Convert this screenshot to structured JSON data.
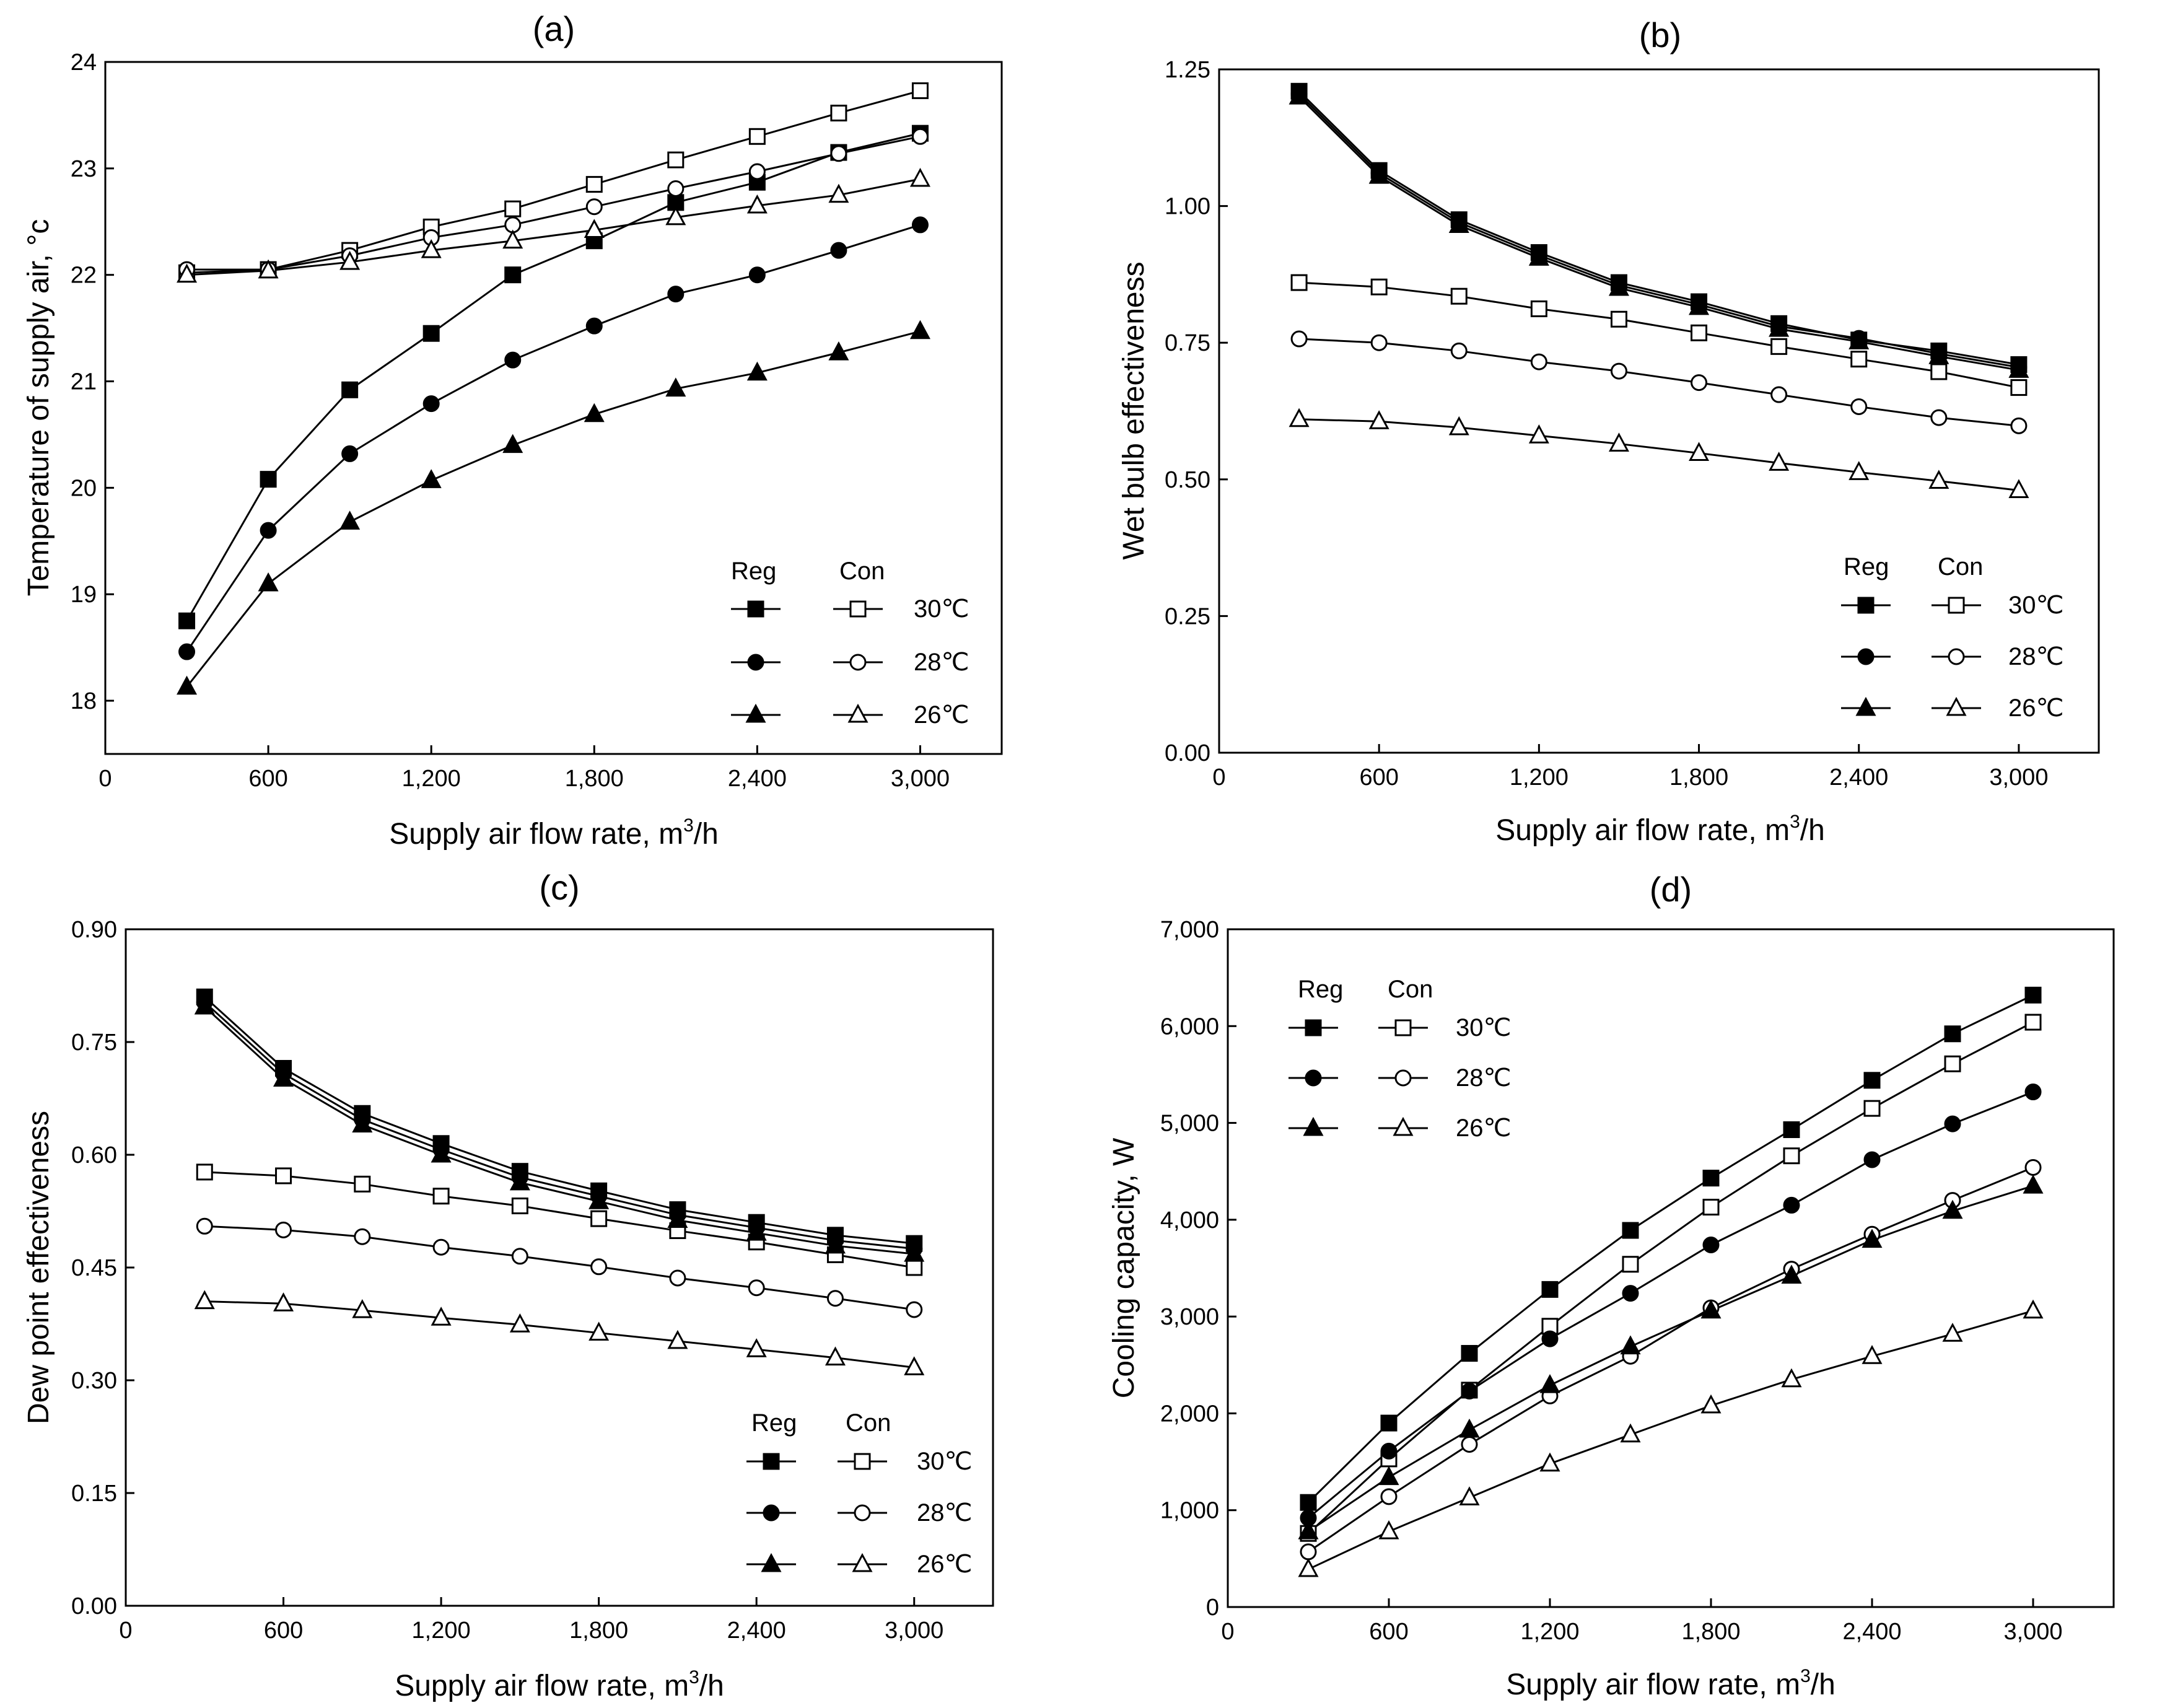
{
  "series_styles": [
    "filled-square",
    "open-square",
    "filled-circle",
    "open-circle",
    "filled-triangle",
    "open-triangle"
  ],
  "chart_data": [
    {
      "type": "line",
      "panel": "(a)",
      "title": "(a)",
      "xlabel": "Supply air flow rate, m3/h",
      "ylabel": "Temperature of supply air, °c",
      "xlim": [
        0,
        3300
      ],
      "ylim": [
        17.5,
        24
      ],
      "x_ticks": [
        0,
        600,
        1200,
        1800,
        2400,
        3000
      ],
      "x_tick_labels": [
        "0",
        "600",
        "1,200",
        "1,800",
        "2,400",
        "3,000"
      ],
      "y_ticks": [
        18,
        19,
        20,
        21,
        22,
        23,
        24
      ],
      "y_tick_labels": [
        "18",
        "19",
        "20",
        "21",
        "22",
        "23",
        "24"
      ],
      "x": [
        300,
        600,
        900,
        1200,
        1500,
        1800,
        2100,
        2400,
        2700,
        3000
      ],
      "legend": {
        "position": "lower-right",
        "col_headers": [
          "Reg",
          "Con"
        ],
        "rows": [
          "30℃",
          "28℃",
          "26℃"
        ]
      },
      "series": [
        {
          "name": "Reg 30℃",
          "marker": "filled-square",
          "values": [
            18.75,
            20.08,
            20.92,
            21.45,
            22.0,
            22.32,
            22.68,
            22.87,
            23.15,
            23.33
          ]
        },
        {
          "name": "Con 30℃",
          "marker": "open-square",
          "values": [
            22.02,
            22.05,
            22.23,
            22.45,
            22.62,
            22.85,
            23.08,
            23.3,
            23.52,
            23.73
          ]
        },
        {
          "name": "Reg 28℃",
          "marker": "filled-circle",
          "values": [
            18.46,
            19.6,
            20.32,
            20.79,
            21.2,
            21.52,
            21.82,
            22.0,
            22.23,
            22.47
          ]
        },
        {
          "name": "Con 28℃",
          "marker": "open-circle",
          "values": [
            22.05,
            22.05,
            22.18,
            22.35,
            22.47,
            22.64,
            22.81,
            22.97,
            23.14,
            23.3
          ]
        },
        {
          "name": "Reg 26℃",
          "marker": "filled-triangle",
          "values": [
            18.13,
            19.1,
            19.68,
            20.07,
            20.4,
            20.69,
            20.93,
            21.08,
            21.27,
            21.47
          ]
        },
        {
          "name": "Con 26℃",
          "marker": "open-triangle",
          "values": [
            22.0,
            22.04,
            22.12,
            22.23,
            22.32,
            22.42,
            22.54,
            22.65,
            22.75,
            22.9
          ]
        }
      ]
    },
    {
      "type": "line",
      "panel": "(b)",
      "title": "(b)",
      "xlabel": "Supply air flow rate, m3/h",
      "ylabel": "Wet bulb effectiveness",
      "xlim": [
        0,
        3300
      ],
      "ylim": [
        0,
        1.25
      ],
      "x_ticks": [
        0,
        600,
        1200,
        1800,
        2400,
        3000
      ],
      "x_tick_labels": [
        "0",
        "600",
        "1,200",
        "1,800",
        "2,400",
        "3,000"
      ],
      "y_ticks": [
        0,
        0.25,
        0.5,
        0.75,
        1.0,
        1.25
      ],
      "y_tick_labels": [
        "0.00",
        "0.25",
        "0.50",
        "0.75",
        "1.00",
        "1.25"
      ],
      "x": [
        300,
        600,
        900,
        1200,
        1500,
        1800,
        2100,
        2400,
        2700,
        3000
      ],
      "legend": {
        "position": "lower-right",
        "col_headers": [
          "Reg",
          "Con"
        ],
        "rows": [
          "30℃",
          "28℃",
          "26℃"
        ]
      },
      "series": [
        {
          "name": "Reg 30℃",
          "marker": "filled-square",
          "values": [
            1.21,
            1.065,
            0.975,
            0.915,
            0.86,
            0.825,
            0.785,
            0.755,
            0.735,
            0.71
          ]
        },
        {
          "name": "Con 30℃",
          "marker": "open-square",
          "values": [
            0.86,
            0.852,
            0.835,
            0.812,
            0.793,
            0.768,
            0.743,
            0.72,
            0.697,
            0.668
          ]
        },
        {
          "name": "Reg 28℃",
          "marker": "filled-circle",
          "values": [
            1.205,
            1.06,
            0.97,
            0.91,
            0.855,
            0.82,
            0.78,
            0.758,
            0.73,
            0.705
          ]
        },
        {
          "name": "Con 28℃",
          "marker": "open-circle",
          "values": [
            0.757,
            0.75,
            0.735,
            0.715,
            0.698,
            0.677,
            0.655,
            0.633,
            0.613,
            0.598
          ]
        },
        {
          "name": "Reg 26℃",
          "marker": "filled-triangle",
          "values": [
            1.2,
            1.055,
            0.965,
            0.905,
            0.85,
            0.815,
            0.775,
            0.752,
            0.725,
            0.7
          ]
        },
        {
          "name": "Con 26℃",
          "marker": "open-triangle",
          "values": [
            0.61,
            0.606,
            0.595,
            0.58,
            0.565,
            0.548,
            0.53,
            0.513,
            0.497,
            0.48
          ]
        }
      ]
    },
    {
      "type": "line",
      "panel": "(c)",
      "title": "(c)",
      "xlabel": "Supply air flow rate, m3/h",
      "ylabel": "Dew point effectiveness",
      "xlim": [
        0,
        3300
      ],
      "ylim": [
        0,
        0.9
      ],
      "x_ticks": [
        0,
        600,
        1200,
        1800,
        2400,
        3000
      ],
      "x_tick_labels": [
        "0",
        "600",
        "1,200",
        "1,800",
        "2,400",
        "3,000"
      ],
      "y_ticks": [
        0,
        0.15,
        0.3,
        0.45,
        0.6,
        0.75,
        0.9
      ],
      "y_tick_labels": [
        "0.00",
        "0.15",
        "0.30",
        "0.45",
        "0.60",
        "0.75",
        "0.90"
      ],
      "x": [
        300,
        600,
        900,
        1200,
        1500,
        1800,
        2100,
        2400,
        2700,
        3000
      ],
      "legend": {
        "position": "lower-right",
        "col_headers": [
          "Reg",
          "Con"
        ],
        "rows": [
          "30℃",
          "28℃",
          "26℃"
        ]
      },
      "series": [
        {
          "name": "Reg 30℃",
          "marker": "filled-square",
          "values": [
            0.81,
            0.715,
            0.655,
            0.615,
            0.578,
            0.552,
            0.527,
            0.51,
            0.493,
            0.482
          ]
        },
        {
          "name": "Con 30℃",
          "marker": "open-square",
          "values": [
            0.577,
            0.572,
            0.561,
            0.545,
            0.532,
            0.515,
            0.499,
            0.484,
            0.467,
            0.45
          ]
        },
        {
          "name": "Reg 28℃",
          "marker": "filled-circle",
          "values": [
            0.803,
            0.708,
            0.647,
            0.607,
            0.57,
            0.545,
            0.52,
            0.503,
            0.486,
            0.475
          ]
        },
        {
          "name": "Con 28℃",
          "marker": "open-circle",
          "values": [
            0.505,
            0.5,
            0.491,
            0.477,
            0.465,
            0.451,
            0.436,
            0.423,
            0.409,
            0.394
          ]
        },
        {
          "name": "Reg 26℃",
          "marker": "filled-triangle",
          "values": [
            0.797,
            0.701,
            0.64,
            0.6,
            0.563,
            0.538,
            0.513,
            0.496,
            0.479,
            0.468
          ]
        },
        {
          "name": "Con 26℃",
          "marker": "open-triangle",
          "values": [
            0.405,
            0.402,
            0.393,
            0.383,
            0.374,
            0.363,
            0.352,
            0.341,
            0.33,
            0.317
          ]
        }
      ]
    },
    {
      "type": "line",
      "panel": "(d)",
      "title": "(d)",
      "xlabel": "Supply air flow rate, m3/h",
      "ylabel": "Cooling capacity, W",
      "xlim": [
        0,
        3300
      ],
      "ylim": [
        0,
        7000
      ],
      "x_ticks": [
        0,
        600,
        1200,
        1800,
        2400,
        3000
      ],
      "x_tick_labels": [
        "0",
        "600",
        "1,200",
        "1,800",
        "2,400",
        "3,000"
      ],
      "y_ticks": [
        0,
        1000,
        2000,
        3000,
        4000,
        5000,
        6000,
        7000
      ],
      "y_tick_labels": [
        "0",
        "1,000",
        "2,000",
        "3,000",
        "4,000",
        "5,000",
        "6,000",
        "7,000"
      ],
      "x": [
        300,
        600,
        900,
        1200,
        1500,
        1800,
        2100,
        2400,
        2700,
        3000
      ],
      "legend": {
        "position": "upper-left",
        "col_headers": [
          "Reg",
          "Con"
        ],
        "rows": [
          "30℃",
          "28℃",
          "26℃"
        ]
      },
      "series": [
        {
          "name": "Reg 30℃",
          "marker": "filled-square",
          "values": [
            1080,
            1900,
            2620,
            3280,
            3890,
            4430,
            4930,
            5440,
            5920,
            6320
          ]
        },
        {
          "name": "Con 30℃",
          "marker": "open-square",
          "values": [
            760,
            1530,
            2240,
            2900,
            3540,
            4130,
            4660,
            5150,
            5610,
            6040
          ]
        },
        {
          "name": "Reg 28℃",
          "marker": "filled-circle",
          "values": [
            920,
            1610,
            2230,
            2770,
            3240,
            3740,
            4150,
            4620,
            4990,
            5320
          ]
        },
        {
          "name": "Con 28℃",
          "marker": "open-circle",
          "values": [
            570,
            1140,
            1680,
            2180,
            2590,
            3090,
            3490,
            3850,
            4200,
            4540
          ]
        },
        {
          "name": "Reg 26℃",
          "marker": "filled-triangle",
          "values": [
            780,
            1340,
            1830,
            2290,
            2690,
            3060,
            3420,
            3790,
            4090,
            4350
          ]
        },
        {
          "name": "Con 26℃",
          "marker": "open-triangle",
          "values": [
            390,
            780,
            1130,
            1480,
            1780,
            2080,
            2350,
            2590,
            2820,
            3060
          ]
        }
      ]
    }
  ]
}
